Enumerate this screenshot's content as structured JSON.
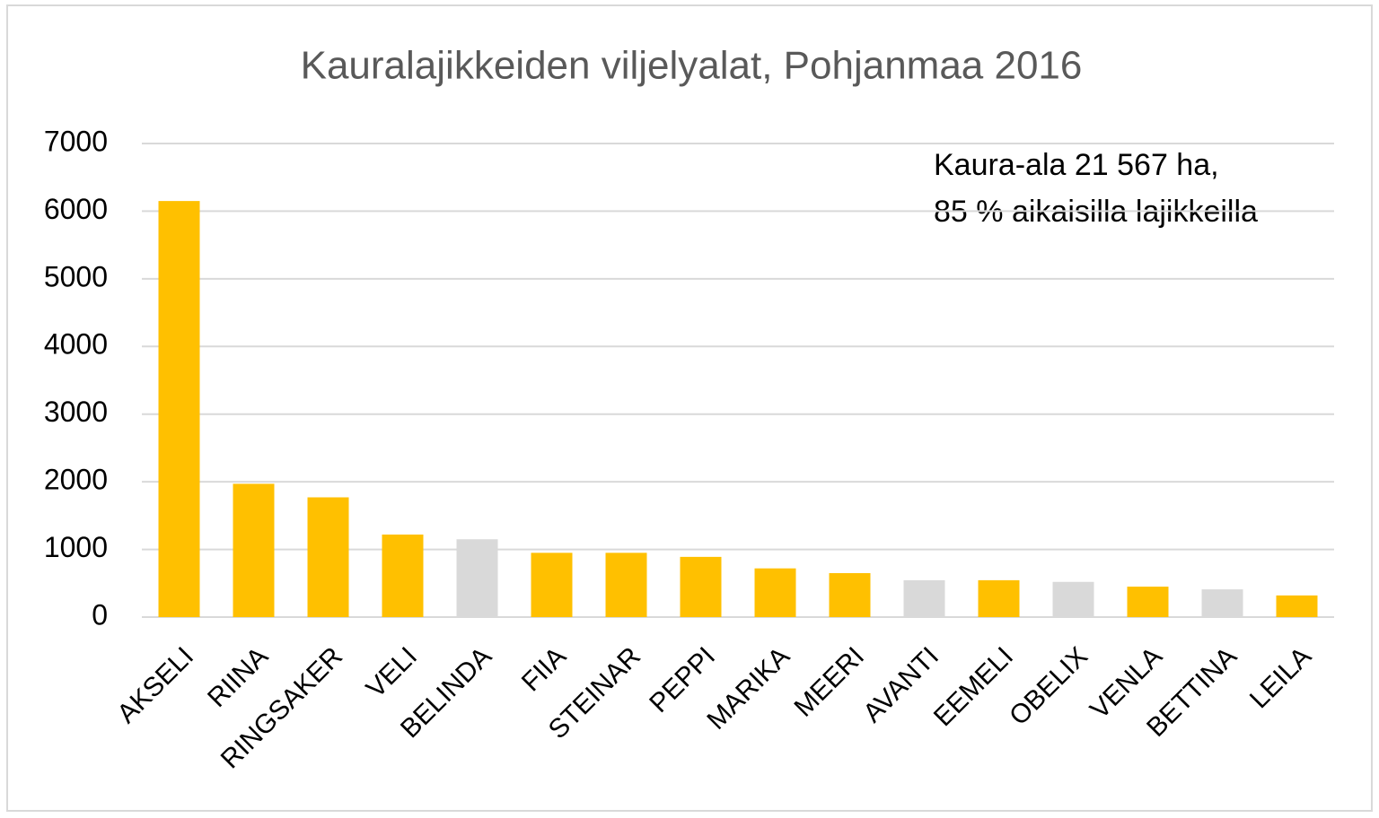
{
  "chart_data": {
    "type": "bar",
    "title": "Kauralajikkeiden  viljelyalat,  Pohjanmaa 2016",
    "annotation": [
      "Kaura-ala 21 567 ha,",
      "85 % aikaisilla lajikkeilla"
    ],
    "categories": [
      "AKSELI",
      "RIINA",
      "RINGSAKER",
      "VELI",
      "BELINDA",
      "FIIA",
      "STEINAR",
      "PEPPI",
      "MARIKA",
      "MEERI",
      "AVANTI",
      "EEMELI",
      "OBELIX",
      "VENLA",
      "BETTINA",
      "LEILA"
    ],
    "values": [
      6150,
      1970,
      1770,
      1220,
      1150,
      950,
      950,
      890,
      720,
      650,
      545,
      545,
      520,
      450,
      410,
      320
    ],
    "colors": [
      "#ffc000",
      "#ffc000",
      "#ffc000",
      "#ffc000",
      "#d9d9d9",
      "#ffc000",
      "#ffc000",
      "#ffc000",
      "#ffc000",
      "#ffc000",
      "#d9d9d9",
      "#ffc000",
      "#d9d9d9",
      "#ffc000",
      "#d9d9d9",
      "#ffc000"
    ],
    "ylim": [
      0,
      7000
    ],
    "yticks": [
      0,
      1000,
      2000,
      3000,
      4000,
      5000,
      6000,
      7000
    ],
    "grid": true
  }
}
